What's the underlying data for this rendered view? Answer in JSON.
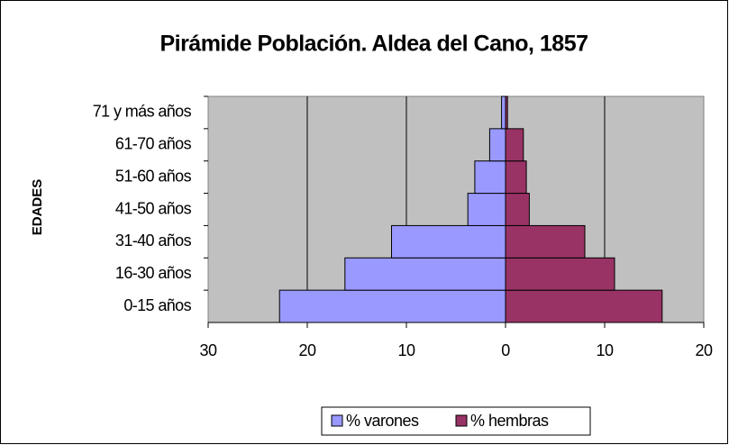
{
  "chart_data": {
    "type": "pyramid",
    "title": "Pirámide Población. Aldea del Cano, 1857",
    "y_label": "EDADES",
    "categories": [
      "0-15 años",
      "16-30 años",
      "31-40 años",
      "41-50 años",
      "51-60 años",
      "61-70 años",
      "71 y más años"
    ],
    "series": [
      {
        "name": "% varones",
        "color": "#9999ff",
        "values": [
          -22.8,
          -16.2,
          -11.5,
          -3.8,
          -3.1,
          -1.6,
          -0.4
        ]
      },
      {
        "name": "% hembras",
        "color": "#993366",
        "values": [
          15.8,
          11.0,
          8.0,
          2.4,
          2.1,
          1.8,
          0.2
        ]
      }
    ],
    "xlim": [
      -30,
      20
    ],
    "xticks": [
      {
        "value": -30,
        "label": "30"
      },
      {
        "value": -20,
        "label": "20"
      },
      {
        "value": -10,
        "label": "10"
      },
      0,
      10,
      20
    ],
    "grid": true,
    "legend": "bottom",
    "plot_background": "#c0c0c0"
  }
}
